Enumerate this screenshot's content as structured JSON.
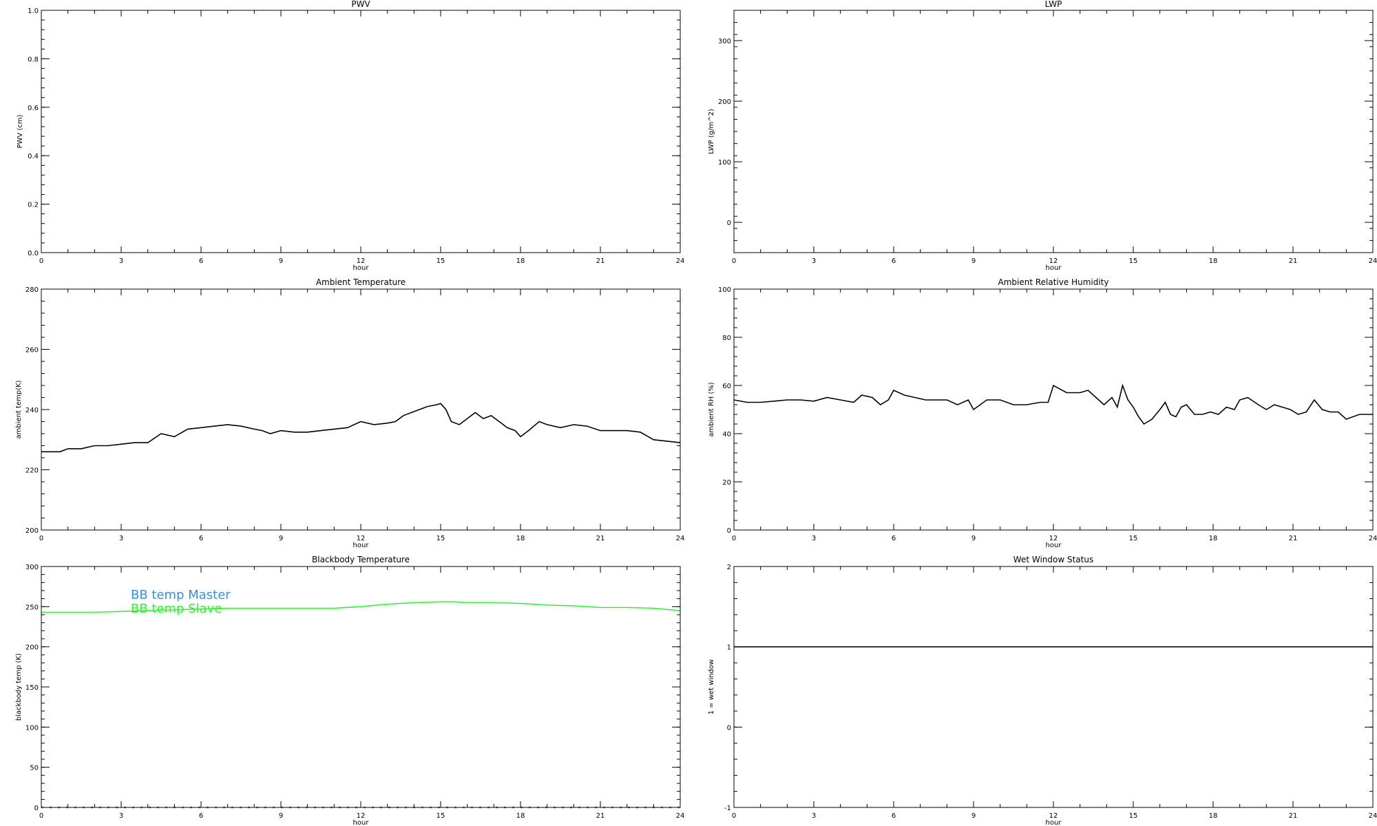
{
  "chart_data": [
    {
      "type": "line",
      "title": "PWV",
      "xlabel": "hour",
      "ylabel": "PWV (cm)",
      "xlim": [
        0,
        24
      ],
      "ylim": [
        0,
        1.0
      ],
      "xticks": [
        "0",
        "3",
        "6",
        "9",
        "12",
        "15",
        "18",
        "21",
        "24"
      ],
      "yticks": [
        "0.0",
        "0.2",
        "0.4",
        "0.6",
        "0.8",
        "1.0"
      ],
      "series": []
    },
    {
      "type": "line",
      "title": "LWP",
      "xlabel": "hour",
      "ylabel": "LWP (g/m^2)",
      "xlim": [
        0,
        24
      ],
      "ylim": [
        -50,
        350
      ],
      "xticks": [
        "0",
        "3",
        "6",
        "9",
        "12",
        "15",
        "18",
        "21",
        "24"
      ],
      "yticks": [
        "0",
        "100",
        "200",
        "300"
      ],
      "series": []
    },
    {
      "type": "line",
      "title": "Ambient Temperature",
      "xlabel": "hour",
      "ylabel": "ambient temp(K)",
      "xlim": [
        0,
        24
      ],
      "ylim": [
        200,
        280
      ],
      "xticks": [
        "0",
        "3",
        "6",
        "9",
        "12",
        "15",
        "18",
        "21",
        "24"
      ],
      "yticks": [
        "200",
        "220",
        "240",
        "260",
        "280"
      ],
      "series": [
        {
          "color": "#000000",
          "x": [
            0,
            0.7,
            1.0,
            1.5,
            2.0,
            2.5,
            3.0,
            3.5,
            4.0,
            4.5,
            5.0,
            5.5,
            6.0,
            6.5,
            7.0,
            7.5,
            8.0,
            8.3,
            8.6,
            9.0,
            9.5,
            10.0,
            10.5,
            11.0,
            11.5,
            12.0,
            12.5,
            13.0,
            13.3,
            13.6,
            13.9,
            14.2,
            14.5,
            14.8,
            15.0,
            15.2,
            15.4,
            15.7,
            16.0,
            16.3,
            16.6,
            16.9,
            17.2,
            17.5,
            17.8,
            18.0,
            18.3,
            18.7,
            19.0,
            19.5,
            20.0,
            20.5,
            21.0,
            21.5,
            22.0,
            22.5,
            23.0,
            23.5,
            24.0
          ],
          "y": [
            226,
            226,
            227,
            227,
            228,
            228,
            228.5,
            229,
            229,
            232,
            231,
            233.5,
            234,
            234.5,
            235,
            234.5,
            233.5,
            233,
            232,
            233,
            232.5,
            232.5,
            233,
            233.5,
            234,
            236,
            235,
            235.5,
            236,
            238,
            239,
            240,
            241,
            241.5,
            242,
            240,
            236,
            235,
            237,
            239,
            237,
            238,
            236,
            234,
            233,
            231,
            233,
            236,
            235,
            234,
            235,
            234.5,
            233,
            233,
            233,
            232.5,
            230,
            229.5,
            229
          ]
        }
      ]
    },
    {
      "type": "line",
      "title": "Ambient Relative Humidity",
      "xlabel": "hour",
      "ylabel": "ambient RH (%)",
      "xlim": [
        0,
        24
      ],
      "ylim": [
        0,
        100
      ],
      "xticks": [
        "0",
        "3",
        "6",
        "9",
        "12",
        "15",
        "18",
        "21",
        "24"
      ],
      "yticks": [
        "0",
        "20",
        "40",
        "60",
        "80",
        "100"
      ],
      "series": [
        {
          "color": "#000000",
          "x": [
            0,
            0.5,
            1.0,
            1.5,
            2.0,
            2.5,
            3.0,
            3.5,
            4.0,
            4.5,
            4.8,
            5.2,
            5.5,
            5.8,
            6.0,
            6.4,
            6.8,
            7.2,
            7.6,
            8.0,
            8.4,
            8.8,
            9.0,
            9.5,
            10.0,
            10.5,
            11.0,
            11.5,
            11.8,
            12.0,
            12.5,
            13.0,
            13.3,
            13.6,
            13.9,
            14.2,
            14.4,
            14.6,
            14.8,
            15.0,
            15.2,
            15.4,
            15.7,
            16.0,
            16.2,
            16.4,
            16.6,
            16.8,
            17.0,
            17.3,
            17.6,
            17.9,
            18.2,
            18.5,
            18.8,
            19.0,
            19.3,
            19.7,
            20.0,
            20.3,
            20.6,
            20.9,
            21.2,
            21.5,
            21.8,
            22.1,
            22.4,
            22.7,
            23.0,
            23.5,
            24.0
          ],
          "y": [
            54,
            53,
            53,
            53.5,
            54,
            54,
            53.5,
            55,
            54,
            53,
            56,
            55,
            52,
            54,
            58,
            56,
            55,
            54,
            54,
            54,
            52,
            54,
            50,
            54,
            54,
            52,
            52,
            53,
            53,
            60,
            57,
            57,
            58,
            55,
            52,
            55,
            51,
            60,
            54,
            51,
            47,
            44,
            46,
            50,
            53,
            48,
            47,
            51,
            52,
            48,
            48,
            49,
            48,
            51,
            50,
            54,
            55,
            52,
            50,
            52,
            51,
            50,
            48,
            49,
            54,
            50,
            49,
            49,
            46,
            48,
            48
          ]
        }
      ]
    },
    {
      "type": "line",
      "title": "Blackbody Temperature",
      "xlabel": "hour",
      "ylabel": "blackbody temp (K)",
      "xlim": [
        0,
        24
      ],
      "ylim": [
        0,
        300
      ],
      "xticks": [
        "0",
        "3",
        "6",
        "9",
        "12",
        "15",
        "18",
        "21",
        "24"
      ],
      "yticks": [
        "0",
        "50",
        "100",
        "150",
        "200",
        "250",
        "300"
      ],
      "legend": [
        {
          "label": "BB temp Master",
          "color": "#3a8dde"
        },
        {
          "label": "BB temp Slave",
          "color": "#33ee33"
        }
      ],
      "series": [
        {
          "name": "BB temp Master",
          "color": "#3a8dde",
          "dashed": true,
          "x": [
            0,
            3,
            6,
            9,
            12,
            15,
            18,
            21,
            24
          ],
          "y": [
            0,
            0,
            0,
            0,
            0,
            0,
            0,
            0,
            0
          ]
        },
        {
          "name": "BB temp Slave",
          "color": "#33ee33",
          "x": [
            0,
            1,
            2,
            3,
            4,
            5,
            6,
            7,
            8,
            9,
            10,
            11,
            12,
            13,
            14,
            15,
            15.5,
            16,
            17,
            18,
            19,
            20,
            21,
            22,
            23,
            24
          ],
          "y": [
            243,
            243,
            243,
            244,
            245,
            246,
            247,
            248,
            248,
            248,
            248,
            248,
            250,
            253,
            255,
            256,
            256,
            255,
            255,
            254,
            252,
            251,
            249,
            249,
            248,
            245
          ]
        }
      ]
    },
    {
      "type": "line",
      "title": "Wet Window Status",
      "xlabel": "hour",
      "ylabel": "1 = wet window",
      "xlim": [
        0,
        24
      ],
      "ylim": [
        -1,
        2
      ],
      "xticks": [
        "0",
        "3",
        "6",
        "9",
        "12",
        "15",
        "18",
        "21",
        "24"
      ],
      "yticks": [
        "-1",
        "0",
        "1",
        "2"
      ],
      "series": [
        {
          "color": "#000000",
          "x": [
            0,
            24
          ],
          "y": [
            1,
            1
          ]
        }
      ]
    }
  ]
}
